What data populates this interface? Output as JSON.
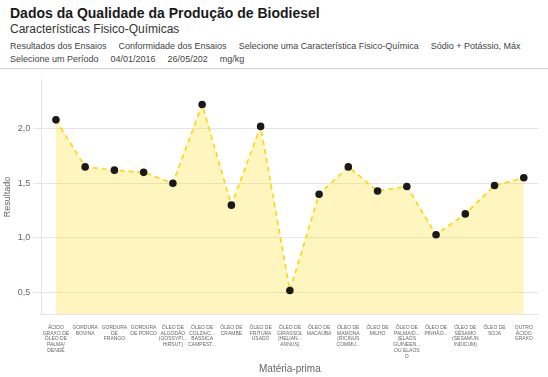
{
  "chart_data": {
    "type": "line",
    "title": "Dados da Qualidade da Produção de Biodiesel",
    "subtitle": "Características Fisico-Químicas",
    "annotations": [
      "Resultados dos Ensaios",
      "Conformidade dos Ensaios",
      "Selecione uma Característica Fisico-Química",
      "Sódio + Potássio, Máx",
      "Selecione um Período",
      "04/01/2016",
      "26/05/202",
      "mg/kg"
    ],
    "x_label": "Matéria-prima",
    "y_label": "Resultado",
    "categories": [
      "ÁCIDO\nGRAXO DE\nÓLEO DE\nPALMA/\nDENDÊ",
      "GORDURA\nBOVINA",
      "GORDURA\nDE\nFRANGO",
      "GORDURA\nDE PORCO",
      "ÓLEO DE\nALGODÃO\n(GOSSYPI...\nHIRSUT)",
      "ÓLEO DE\nCOLZA/C...\nBASSICA\nCAMPEST...",
      "ÓLEO DE\nCRAMBE",
      "ÓLEO DE\nFRITURA\nUSADO",
      "ÓLEO DE\nGIRASSOL\n(HELIAN...\nANNUS)",
      "ÓLEO DE\nMACAÚBA",
      "ÓLEO DE\nMAMONA\n(RICINUS\nCOMMU...",
      "ÓLEO DE\nMILHO",
      "ÓLEO DE\nPALMA/D...\n(ELAOS\nGUINEEN...\nOU ELAOS\nO",
      "ÓLEO DE\nPINHÃO...",
      "ÓLEO DE\nSÉSAMO\n(SESAMUN\nINDICUM)",
      "ÓLEO DE\nSOJA",
      "OUTRO\nÁCIDO\nGRAXO"
    ],
    "values": [
      2.08,
      1.65,
      1.62,
      1.6,
      1.5,
      2.22,
      1.3,
      2.02,
      0.52,
      1.4,
      1.65,
      1.43,
      1.47,
      1.03,
      1.22,
      1.48,
      1.55
    ],
    "color": "#FFD700",
    "line_style": "dashed",
    "marker": "circle",
    "ylim": [
      0.3,
      2.45
    ],
    "yticks": [
      {
        "value": 0.5,
        "label": "0,5"
      },
      {
        "value": 1.0,
        "label": "1,0"
      },
      {
        "value": 1.5,
        "label": "1,5"
      },
      {
        "value": 2.0,
        "label": "2,0"
      }
    ],
    "grid": true
  }
}
